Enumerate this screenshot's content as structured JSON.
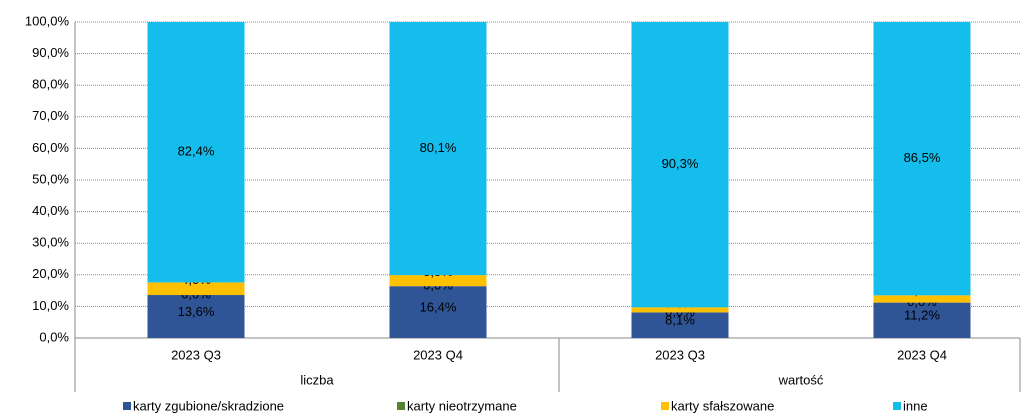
{
  "chart_data": {
    "type": "stacked_bar",
    "categories": [
      "2023 Q3",
      "2023 Q4",
      "2023 Q3",
      "2023 Q4"
    ],
    "groups": [
      "liczba",
      "wartość"
    ],
    "series": [
      {
        "name": "karty zgubione/skradzione",
        "color": "#2f5597",
        "values": [
          13.6,
          16.4,
          8.1,
          11.2
        ],
        "value_labels": [
          "13,6%",
          "16,4%",
          "8,1%",
          "11,2%"
        ]
      },
      {
        "name": "karty nieotrzymane",
        "color": "#548235",
        "values": [
          0,
          0,
          0,
          0
        ],
        "value_labels": [
          "0,0%",
          "0,0%",
          "0,0%",
          "0,0%"
        ]
      },
      {
        "name": "karty sfałszowane",
        "color": "#ffc000",
        "values": [
          4.0,
          3.5,
          1.6,
          2.3
        ],
        "value_labels": [
          "4,0%",
          "3,5%",
          "1,6%",
          "2,3%"
        ]
      },
      {
        "name": "inne",
        "color": "#14bdeb",
        "values": [
          82.4,
          80.1,
          90.3,
          86.5
        ],
        "value_labels": [
          "82,4%",
          "80,1%",
          "90,3%",
          "86,5%"
        ]
      }
    ],
    "ylim": [
      0,
      100
    ],
    "yticks": [
      {
        "value": 0,
        "label": "0,0%"
      },
      {
        "value": 10,
        "label": "10,0%"
      },
      {
        "value": 20,
        "label": "20,0%"
      },
      {
        "value": 30,
        "label": "30,0%"
      },
      {
        "value": 40,
        "label": "40,0%"
      },
      {
        "value": 50,
        "label": "50,0%"
      },
      {
        "value": 60,
        "label": "60,0%"
      },
      {
        "value": 70,
        "label": "70,0%"
      },
      {
        "value": 80,
        "label": "80,0%"
      },
      {
        "value": 90,
        "label": "90,0%"
      },
      {
        "value": 100,
        "label": "100,0%"
      }
    ],
    "grid": true
  }
}
